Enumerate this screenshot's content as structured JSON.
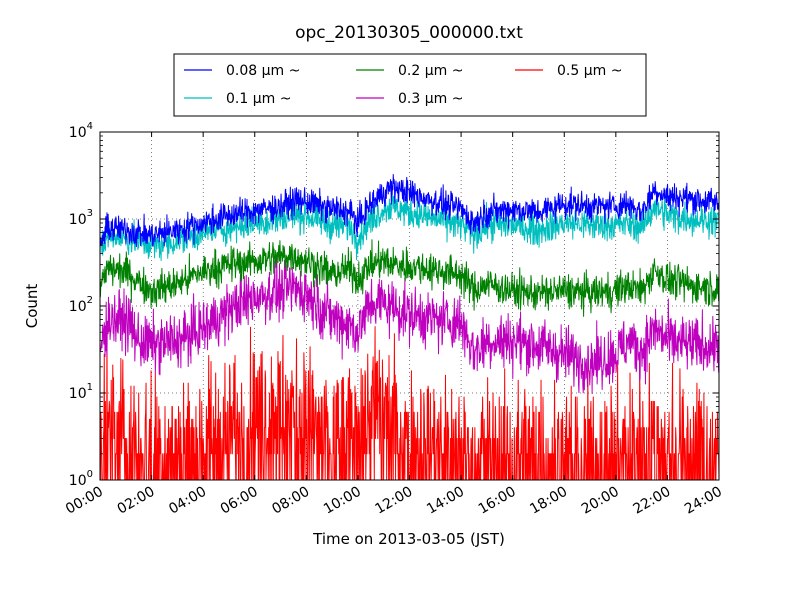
{
  "chart_data": {
    "type": "line",
    "title": "opc_20130305_000000.txt",
    "xlabel": "Time on 2013-03-05 (JST)",
    "ylabel": "Count",
    "x_ticks": [
      "00:00",
      "02:00",
      "04:00",
      "06:00",
      "08:00",
      "10:00",
      "12:00",
      "14:00",
      "16:00",
      "18:00",
      "20:00",
      "22:00",
      "24:00"
    ],
    "y_ticks": [
      {
        "base": "10",
        "exp": "0"
      },
      {
        "base": "10",
        "exp": "1"
      },
      {
        "base": "10",
        "exp": "2"
      },
      {
        "base": "10",
        "exp": "3"
      },
      {
        "base": "10",
        "exp": "4"
      }
    ],
    "xlim_hours": [
      0,
      24
    ],
    "ylim": [
      1,
      10000
    ],
    "y_scale": "log",
    "grid": true,
    "legend_placement": "top",
    "x_unit": "hours",
    "series": [
      {
        "name": "0.08 μm ~",
        "color": "#0000ff",
        "noise": 0.08,
        "x": [
          0,
          0.3,
          1,
          2,
          3,
          4,
          5,
          6,
          7,
          7.5,
          8,
          8.5,
          9,
          9.7,
          10,
          10.5,
          11,
          11.3,
          12,
          13,
          14,
          14.5,
          15,
          16,
          17,
          18,
          19,
          20,
          20.5,
          21,
          21.5,
          22,
          23,
          24
        ],
        "y": [
          500,
          800,
          750,
          650,
          750,
          900,
          1100,
          1250,
          1400,
          1600,
          1600,
          1400,
          1300,
          1200,
          900,
          1500,
          2000,
          2300,
          2000,
          1600,
          1300,
          900,
          1200,
          1300,
          1200,
          1500,
          1400,
          1400,
          1500,
          1200,
          2200,
          1800,
          1700,
          1500
        ]
      },
      {
        "name": "0.1 μm ~",
        "color": "#00bfbf",
        "noise": 0.09,
        "x": [
          0,
          0.3,
          1,
          2,
          3,
          4,
          5,
          6,
          7,
          7.5,
          8,
          8.5,
          9,
          9.7,
          10,
          10.5,
          11,
          11.3,
          12,
          13,
          14,
          14.5,
          15,
          16,
          17,
          18,
          19,
          20,
          20.5,
          21,
          21.5,
          22,
          23,
          24
        ],
        "y": [
          400,
          650,
          600,
          500,
          550,
          700,
          800,
          900,
          1000,
          1100,
          1100,
          950,
          850,
          800,
          600,
          1000,
          1300,
          1400,
          1200,
          1000,
          850,
          650,
          850,
          850,
          750,
          900,
          850,
          850,
          900,
          800,
          1400,
          1100,
          1000,
          950
        ]
      },
      {
        "name": "0.2 μm ~",
        "color": "#008000",
        "noise": 0.1,
        "x": [
          0,
          0.3,
          1,
          2,
          3,
          4,
          5,
          6,
          7,
          7.5,
          8,
          8.5,
          9,
          9.7,
          10,
          10.5,
          11,
          11.3,
          12,
          13,
          14,
          14.5,
          15,
          16,
          17,
          18,
          19,
          20,
          20.5,
          21,
          21.5,
          22,
          23,
          24
        ],
        "y": [
          150,
          270,
          250,
          150,
          180,
          250,
          300,
          330,
          370,
          380,
          330,
          280,
          230,
          270,
          200,
          300,
          330,
          300,
          290,
          260,
          230,
          150,
          180,
          150,
          140,
          150,
          140,
          150,
          170,
          150,
          260,
          200,
          170,
          160
        ]
      },
      {
        "name": "0.3 μm ~",
        "color": "#bf00bf",
        "noise": 0.16,
        "x": [
          0,
          0.3,
          1,
          1.5,
          2,
          3,
          4,
          5,
          6,
          7,
          7.5,
          8,
          8.5,
          9,
          9.7,
          10,
          10.5,
          11,
          11.3,
          12,
          13,
          14,
          14.5,
          15,
          16,
          17,
          18,
          19,
          20,
          20.5,
          21,
          21.5,
          22,
          23,
          24
        ],
        "y": [
          30,
          70,
          70,
          40,
          35,
          40,
          55,
          90,
          130,
          150,
          160,
          140,
          100,
          75,
          60,
          50,
          110,
          110,
          100,
          80,
          70,
          65,
          30,
          40,
          40,
          35,
          28,
          22,
          28,
          40,
          30,
          55,
          40,
          35,
          35
        ]
      },
      {
        "name": "0.5 μm ~",
        "color": "#ff0000",
        "noise": 0.45,
        "x": [
          0,
          1,
          2,
          3,
          4,
          4.5,
          5,
          6,
          6.5,
          7,
          7.5,
          8,
          8.5,
          9,
          9.5,
          10,
          10.5,
          11,
          11.5,
          12,
          12.5,
          13,
          14,
          15,
          16,
          18,
          20,
          21,
          22,
          23,
          24
        ],
        "y": [
          3,
          3,
          2,
          2,
          2.5,
          3,
          4,
          5,
          6,
          6,
          6,
          5,
          3,
          2.5,
          2.5,
          5,
          6,
          6,
          5,
          3,
          2.5,
          2,
          2,
          1.8,
          1.8,
          1.8,
          1.8,
          2.5,
          2,
          1.8,
          1.8
        ]
      }
    ]
  }
}
